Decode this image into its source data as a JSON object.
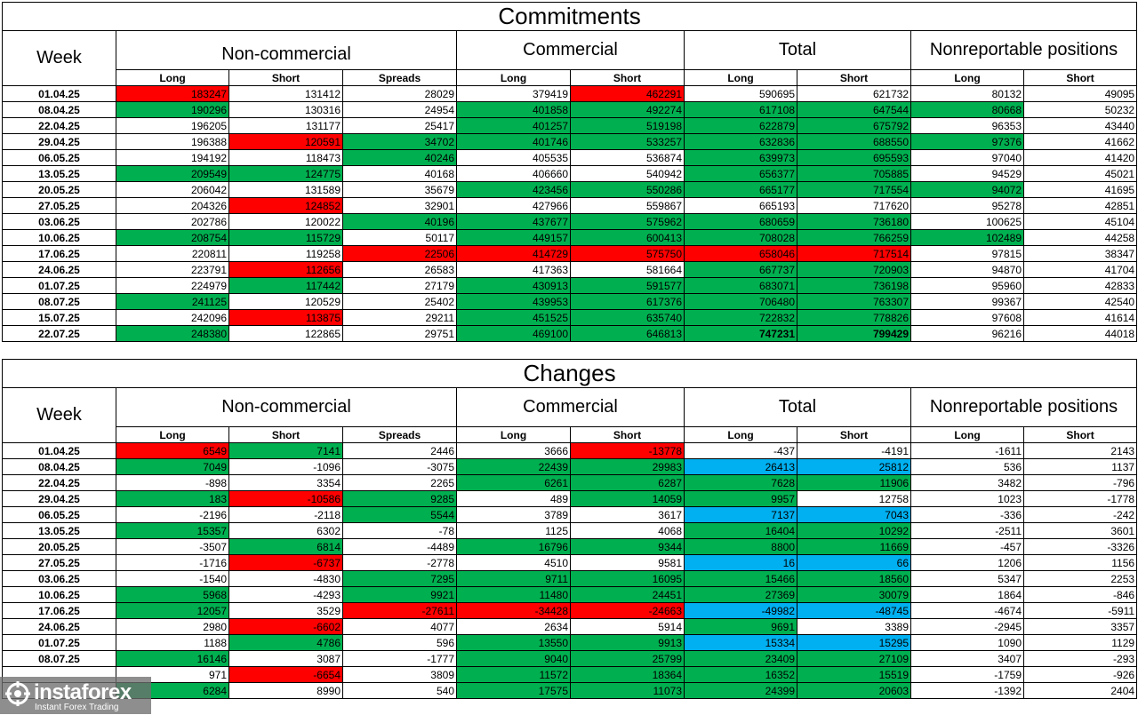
{
  "commitments": {
    "title": "Commitments",
    "week_label": "Week",
    "groups": [
      "Non-commercial",
      "Commercial",
      "Total",
      "Nonreportable positions"
    ],
    "sub_headers": [
      "Long",
      "Short",
      "Spreads",
      "Long",
      "Short",
      "Long",
      "Short",
      "Long",
      "Short"
    ],
    "rows": [
      {
        "date": "01.04.25",
        "values": [
          "183247",
          "131412",
          "28029",
          "379419",
          "462291",
          "590695",
          "621732",
          "80132",
          "49095"
        ]
      },
      {
        "date": "08.04.25",
        "values": [
          "190296",
          "130316",
          "24954",
          "401858",
          "492274",
          "617108",
          "647544",
          "80668",
          "50232"
        ]
      },
      {
        "date": "22.04.25",
        "values": [
          "196205",
          "131177",
          "25417",
          "401257",
          "519198",
          "622879",
          "675792",
          "96353",
          "43440"
        ]
      },
      {
        "date": "29.04.25",
        "values": [
          "196388",
          "120591",
          "34702",
          "401746",
          "533257",
          "632836",
          "688550",
          "97376",
          "41662"
        ]
      },
      {
        "date": "06.05.25",
        "values": [
          "194192",
          "118473",
          "40246",
          "405535",
          "536874",
          "639973",
          "695593",
          "97040",
          "41420"
        ]
      },
      {
        "date": "13.05.25",
        "values": [
          "209549",
          "124775",
          "40168",
          "406660",
          "540942",
          "656377",
          "705885",
          "94529",
          "45021"
        ]
      },
      {
        "date": "20.05.25",
        "values": [
          "206042",
          "131589",
          "35679",
          "423456",
          "550286",
          "665177",
          "717554",
          "94072",
          "41695"
        ]
      },
      {
        "date": "27.05.25",
        "values": [
          "204326",
          "124852",
          "32901",
          "427966",
          "559867",
          "665193",
          "717620",
          "95278",
          "42851"
        ]
      },
      {
        "date": "03.06.25",
        "values": [
          "202786",
          "120022",
          "40196",
          "437677",
          "575962",
          "680659",
          "736180",
          "100625",
          "45104"
        ]
      },
      {
        "date": "10.06.25",
        "values": [
          "208754",
          "115729",
          "50117",
          "449157",
          "600413",
          "708028",
          "766259",
          "102489",
          "44258"
        ]
      },
      {
        "date": "17.06.25",
        "values": [
          "220811",
          "119258",
          "22506",
          "414729",
          "575750",
          "658046",
          "717514",
          "97815",
          "38347"
        ]
      },
      {
        "date": "24.06.25",
        "values": [
          "223791",
          "112656",
          "26583",
          "417363",
          "581664",
          "667737",
          "720903",
          "94870",
          "41704"
        ]
      },
      {
        "date": "01.07.25",
        "values": [
          "224979",
          "117442",
          "27179",
          "430913",
          "591577",
          "683071",
          "736198",
          "95960",
          "42833"
        ]
      },
      {
        "date": "08.07.25",
        "values": [
          "241125",
          "120529",
          "25402",
          "439953",
          "617376",
          "706480",
          "763307",
          "99367",
          "42540"
        ]
      },
      {
        "date": "15.07.25",
        "values": [
          "242096",
          "113875",
          "29211",
          "451525",
          "635740",
          "722832",
          "778826",
          "97608",
          "41614"
        ]
      },
      {
        "date": "22.07.25",
        "values": [
          "248380",
          "122865",
          "29751",
          "469100",
          "646813",
          "747231",
          "799429",
          "96216",
          "44018"
        ]
      }
    ]
  },
  "changes": {
    "title": "Changes",
    "week_label": "Week",
    "groups": [
      "Non-commercial",
      "Commercial",
      "Total",
      "Nonreportable positions"
    ],
    "sub_headers": [
      "Long",
      "Short",
      "Spreads",
      "Long",
      "Short",
      "Long",
      "Short",
      "Long",
      "Short"
    ],
    "rows": [
      {
        "date": "01.04.25",
        "values": [
          "6549",
          "7141",
          "2446",
          "3666",
          "-13778",
          "-437",
          "-4191",
          "-1611",
          "2143"
        ]
      },
      {
        "date": "08.04.25",
        "values": [
          "7049",
          "-1096",
          "-3075",
          "22439",
          "29983",
          "26413",
          "25812",
          "536",
          "1137"
        ]
      },
      {
        "date": "22.04.25",
        "values": [
          "-898",
          "3354",
          "2265",
          "6261",
          "6287",
          "7628",
          "11906",
          "3482",
          "-796"
        ]
      },
      {
        "date": "29.04.25",
        "values": [
          "183",
          "-10586",
          "9285",
          "489",
          "14059",
          "9957",
          "12758",
          "1023",
          "-1778"
        ]
      },
      {
        "date": "06.05.25",
        "values": [
          "-2196",
          "-2118",
          "5544",
          "3789",
          "3617",
          "7137",
          "7043",
          "-336",
          "-242"
        ]
      },
      {
        "date": "13.05.25",
        "values": [
          "15357",
          "6302",
          "-78",
          "1125",
          "4068",
          "16404",
          "10292",
          "-2511",
          "3601"
        ]
      },
      {
        "date": "20.05.25",
        "values": [
          "-3507",
          "6814",
          "-4489",
          "16796",
          "9344",
          "8800",
          "11669",
          "-457",
          "-3326"
        ]
      },
      {
        "date": "27.05.25",
        "values": [
          "-1716",
          "-6737",
          "-2778",
          "4510",
          "9581",
          "16",
          "66",
          "1206",
          "1156"
        ]
      },
      {
        "date": "03.06.25",
        "values": [
          "-1540",
          "-4830",
          "7295",
          "9711",
          "16095",
          "15466",
          "18560",
          "5347",
          "2253"
        ]
      },
      {
        "date": "10.06.25",
        "values": [
          "5968",
          "-4293",
          "9921",
          "11480",
          "24451",
          "27369",
          "30079",
          "1864",
          "-846"
        ]
      },
      {
        "date": "17.06.25",
        "values": [
          "12057",
          "3529",
          "-27611",
          "-34428",
          "-24663",
          "-49982",
          "-48745",
          "-4674",
          "-5911"
        ]
      },
      {
        "date": "24.06.25",
        "values": [
          "2980",
          "-6602",
          "4077",
          "2634",
          "5914",
          "9691",
          "3389",
          "-2945",
          "3357"
        ]
      },
      {
        "date": "01.07.25",
        "values": [
          "1188",
          "4786",
          "596",
          "13550",
          "9913",
          "15334",
          "15295",
          "1090",
          "1129"
        ]
      },
      {
        "date": "08.07.25",
        "values": [
          "16146",
          "3087",
          "-1777",
          "9040",
          "25799",
          "23409",
          "27109",
          "3407",
          "-293"
        ]
      },
      {
        "date": "",
        "values": [
          "971",
          "-6654",
          "3809",
          "11572",
          "18364",
          "16352",
          "15519",
          "-1759",
          "-926"
        ]
      },
      {
        "date": "",
        "values": [
          "6284",
          "8990",
          "540",
          "17575",
          "11073",
          "24399",
          "20603",
          "-1392",
          "2404"
        ]
      }
    ]
  },
  "logo": {
    "name": "instaforex",
    "tagline": "Instant Forex Trading"
  },
  "colors": {
    "green": "#00b050",
    "red": "#ff0000",
    "blue": "#00b0f0"
  }
}
